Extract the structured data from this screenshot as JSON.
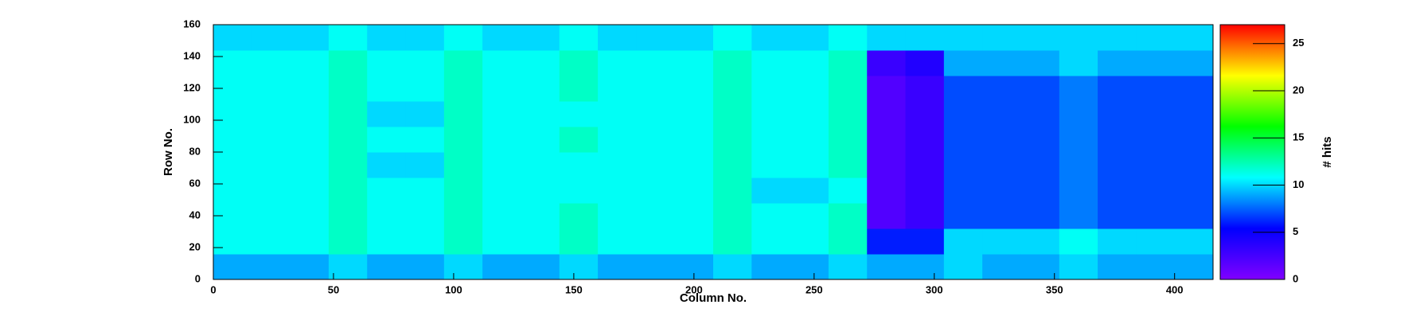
{
  "chart_data": {
    "type": "heatmap",
    "x_label": "Column No.",
    "y_label": "Row No.",
    "z_label": "# hits",
    "x_bins": [
      0,
      16,
      32,
      48,
      64,
      80,
      96,
      112,
      128,
      144,
      160,
      176,
      192,
      208,
      224,
      240,
      256,
      272,
      288,
      304,
      320,
      336,
      352,
      368,
      384,
      400,
      416
    ],
    "y_bins": [
      0,
      16,
      32,
      48,
      64,
      80,
      96,
      112,
      128,
      144,
      160
    ],
    "z": [
      [
        9,
        9,
        9,
        10,
        9,
        9,
        10,
        9,
        9,
        10,
        9,
        9,
        9,
        10,
        9,
        9,
        10,
        9,
        9,
        10,
        9,
        9,
        10,
        9,
        9,
        9
      ],
      [
        11,
        11,
        11,
        12,
        11,
        11,
        12,
        11,
        11,
        12,
        11,
        11,
        11,
        12,
        11,
        11,
        12,
        6,
        6,
        10,
        10,
        10,
        11,
        10,
        10,
        10
      ],
      [
        11,
        11,
        11,
        12,
        11,
        11,
        12,
        11,
        11,
        12,
        11,
        11,
        11,
        12,
        11,
        11,
        12,
        2,
        3,
        7,
        7,
        7,
        8,
        7,
        7,
        7
      ],
      [
        11,
        11,
        11,
        12,
        11,
        11,
        12,
        11,
        11,
        11,
        11,
        11,
        11,
        12,
        10,
        10,
        11,
        2,
        3,
        7,
        7,
        7,
        8,
        7,
        7,
        7
      ],
      [
        11,
        11,
        11,
        12,
        10,
        10,
        12,
        11,
        11,
        11,
        11,
        11,
        11,
        12,
        11,
        11,
        12,
        2,
        3,
        7,
        7,
        7,
        8,
        7,
        7,
        7
      ],
      [
        11,
        11,
        11,
        12,
        11,
        11,
        12,
        11,
        11,
        12,
        11,
        11,
        11,
        12,
        11,
        11,
        12,
        2,
        3,
        7,
        7,
        7,
        8,
        7,
        7,
        7
      ],
      [
        11,
        11,
        11,
        12,
        10,
        10,
        12,
        11,
        11,
        11,
        11,
        11,
        11,
        12,
        11,
        11,
        12,
        2,
        3,
        7,
        7,
        7,
        8,
        7,
        7,
        7
      ],
      [
        11,
        11,
        11,
        12,
        11,
        11,
        12,
        11,
        11,
        12,
        11,
        11,
        11,
        12,
        11,
        11,
        12,
        2,
        3,
        7,
        7,
        7,
        8,
        7,
        7,
        7
      ],
      [
        11,
        11,
        11,
        12,
        11,
        11,
        12,
        11,
        11,
        12,
        11,
        11,
        11,
        12,
        11,
        11,
        12,
        3,
        4,
        9,
        9,
        9,
        10,
        9,
        9,
        9
      ],
      [
        10,
        10,
        10,
        11,
        10,
        10,
        11,
        10,
        10,
        11,
        10,
        10,
        10,
        11,
        10,
        10,
        11,
        10,
        10,
        10,
        10,
        10,
        10,
        10,
        10,
        10
      ]
    ],
    "xlim": [
      0,
      416
    ],
    "xticks": [
      0,
      50,
      100,
      150,
      200,
      250,
      300,
      350,
      400
    ],
    "ylim": [
      0,
      160
    ],
    "yticks": [
      0,
      20,
      40,
      60,
      80,
      100,
      120,
      140,
      160
    ],
    "zlim": [
      0,
      27
    ],
    "zticks": [
      0,
      5,
      10,
      15,
      20,
      25
    ],
    "palette": [
      "#8000ff",
      "#0000ff",
      "#00ffff",
      "#00ff00",
      "#ffff00",
      "#ff0000"
    ]
  }
}
